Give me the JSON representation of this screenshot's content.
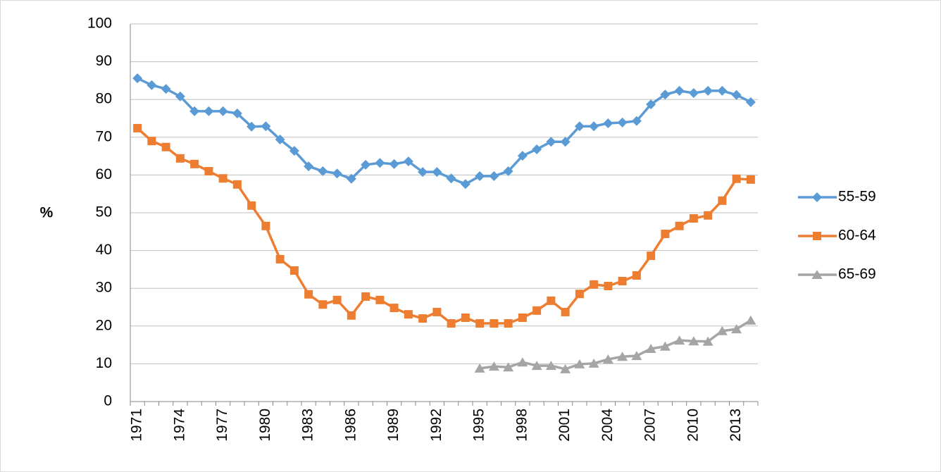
{
  "chart_data": {
    "type": "line",
    "y_label": "%",
    "categories": [
      "1971",
      null,
      null,
      "1974",
      null,
      null,
      "1977",
      null,
      null,
      "1980",
      null,
      null,
      "1983",
      null,
      null,
      "1986",
      null,
      null,
      "1989",
      null,
      null,
      "1992",
      null,
      null,
      "1995",
      null,
      null,
      "1998",
      null,
      null,
      "2001",
      null,
      null,
      "2004",
      null,
      null,
      "2007",
      null,
      null,
      "2010",
      null,
      null,
      "2013",
      null
    ],
    "series": [
      {
        "name": "55-59",
        "color": "#5b9bd5",
        "marker": "diamond",
        "values": [
          85.6,
          83.8,
          82.8,
          80.8,
          76.9,
          76.9,
          76.9,
          76.3,
          72.8,
          72.9,
          69.4,
          66.4,
          62.3,
          61.0,
          60.4,
          59.0,
          62.7,
          63.2,
          62.9,
          63.6,
          60.8,
          60.8,
          59.1,
          57.6,
          59.7,
          59.7,
          61.0,
          65.1,
          66.8,
          68.8,
          68.8,
          72.9,
          72.9,
          73.7,
          73.9,
          74.3,
          78.7,
          81.3,
          82.3,
          81.7,
          82.3,
          82.3,
          81.2,
          79.3
        ]
      },
      {
        "name": "60-64",
        "color": "#ed7d31",
        "marker": "square",
        "values": [
          72.4,
          69.0,
          67.4,
          64.4,
          62.9,
          61.0,
          59.1,
          57.5,
          51.9,
          46.5,
          37.7,
          34.7,
          28.4,
          25.7,
          26.9,
          22.8,
          27.8,
          26.9,
          24.8,
          23.1,
          22.0,
          23.7,
          20.7,
          22.2,
          20.7,
          20.7,
          20.7,
          22.2,
          24.1,
          26.7,
          23.7,
          28.5,
          31.0,
          30.6,
          31.9,
          33.4,
          38.6,
          44.4,
          46.5,
          48.5,
          49.3,
          53.2,
          59.0,
          58.8
        ]
      },
      {
        "name": "65-69",
        "color": "#a5a5a5",
        "marker": "triangle",
        "values": [
          null,
          null,
          null,
          null,
          null,
          null,
          null,
          null,
          null,
          null,
          null,
          null,
          null,
          null,
          null,
          null,
          null,
          null,
          null,
          null,
          null,
          null,
          null,
          null,
          8.8,
          9.3,
          9.1,
          10.4,
          9.5,
          9.5,
          8.6,
          9.9,
          10.1,
          11.2,
          11.9,
          12.1,
          14.0,
          14.6,
          16.2,
          16.0,
          15.9,
          18.7,
          19.2,
          21.5
        ]
      }
    ],
    "ylim": [
      0,
      100
    ],
    "yticks": [
      0,
      10,
      20,
      30,
      40,
      50,
      60,
      70,
      80,
      90,
      100
    ],
    "grid": true,
    "legend": "right"
  }
}
